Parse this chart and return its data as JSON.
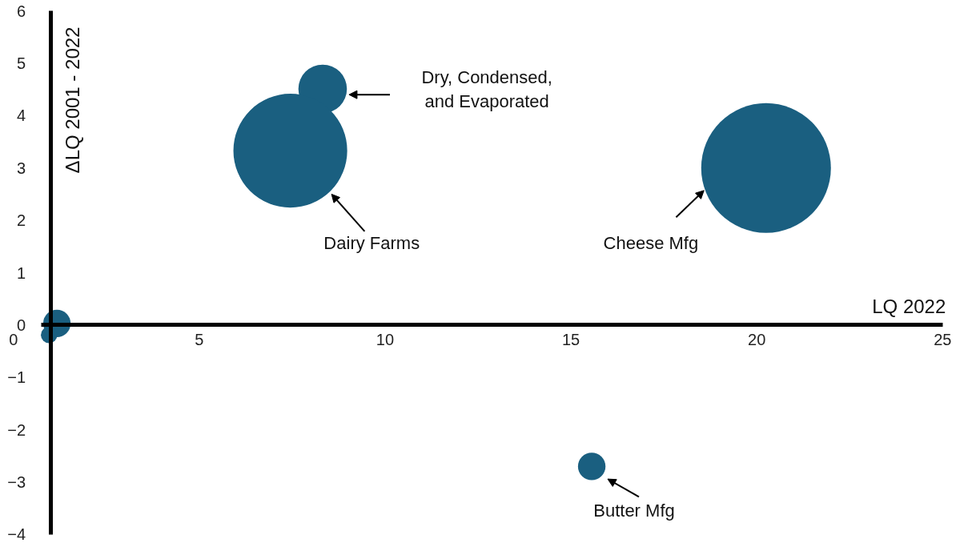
{
  "chart_data": {
    "type": "bubble",
    "xlabel": "LQ 2022",
    "ylabel": "ΔLQ 2001 - 2022",
    "x": [
      8.32,
      7.45,
      20.25,
      15.56,
      1.17,
      0.96
    ],
    "values": [
      4.51,
      3.33,
      3.0,
      -2.7,
      0.03,
      -0.19
    ],
    "sizes": [
      0.14,
      0.77,
      1,
      0.045,
      0.045,
      0.016
    ],
    "color": "#1a5f80",
    "xlim": [
      0,
      25
    ],
    "ylim": [
      -4,
      6
    ],
    "xticks": [
      0,
      5,
      10,
      15,
      20,
      25
    ],
    "yticks": [
      -4,
      -3,
      -2,
      -1,
      0,
      1,
      2,
      3,
      4,
      5,
      6
    ],
    "grid": false,
    "annotations": [
      "Dry, Condensed,\nand Evaporated",
      {
        "text": "Dairy Farms",
        "x": 8.56,
        "y": 2.5
      },
      {
        "text": "Cheese Mfg",
        "x": 18.58,
        "y": 2.57
      },
      {
        "text": "Butter Mfg",
        "x": 15.56,
        "y": -2.7
      }
    ]
  }
}
